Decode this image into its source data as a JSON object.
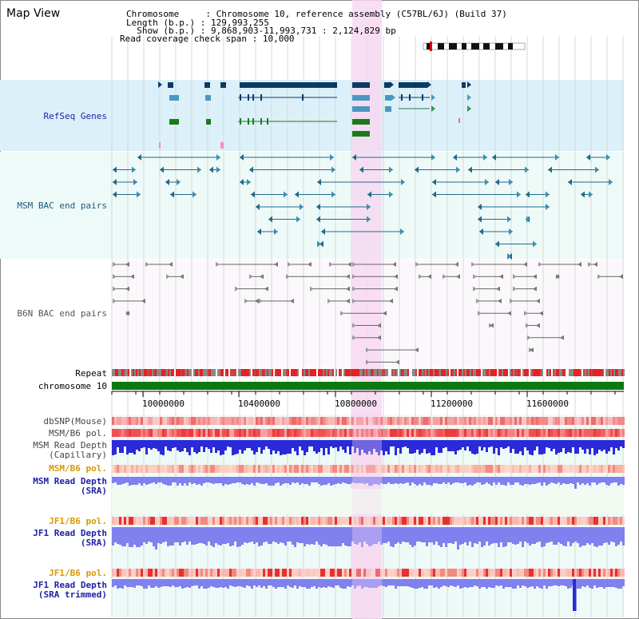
{
  "header": {
    "title": "Map View",
    "info": [
      {
        "key": "Chromosome     ",
        "value": ": Chromosome 10, reference assembly (C57BL/6J) (Build 37)"
      },
      {
        "key": "Length (b.p.) ",
        "value": ": 129,993,255"
      },
      {
        "key": "  Show (b.p.) ",
        "value": ": 9,868,903-11,993,731 : 2,124,829 bp"
      },
      {
        "key": "Read coverage check span ",
        "value": ": 10,000"
      }
    ]
  },
  "tracks": {
    "refseq": "RefSeq Genes",
    "msm_bac": "MSM BAC end pairs",
    "b6n_bac": "B6N BAC end pairs",
    "repeat": "Repeat",
    "chromosome": "chromosome 10",
    "dbsnp": "dbSNP(Mouse)",
    "msm_b6_pol_1": "MSM/B6 pol.",
    "msm_read_depth_cap_1": "MSM Read Depth",
    "msm_read_depth_cap_2": "(Capillary)",
    "msm_b6_pol_2": "MSM/B6 pol.",
    "msm_read_depth_sra_1": "MSM Read Depth",
    "msm_read_depth_sra_2": "(SRA)",
    "jf1_b6_pol_1": "JF1/B6 pol.",
    "jf1_read_depth_sra_1": "JF1 Read Depth",
    "jf1_read_depth_sra_2": "(SRA)",
    "jf1_b6_pol_2": "JF1/B6 pol.",
    "jf1_read_depth_trim_1": "JF1 Read Depth",
    "jf1_read_depth_trim_2": "(SRA trimmed)"
  },
  "axis": {
    "ticks": [
      "10000000",
      "10400000",
      "10800000",
      "11200000",
      "11600000"
    ]
  },
  "colors": {
    "refseq_bg": "#dcf0f9",
    "bac_bg": "#eefaf8",
    "b6n_bg": "#fbf8fb",
    "highlight": "#f7d8f1",
    "gene_dark": "#0c3a66",
    "gene_mid": "#4a98c0",
    "gene_green": "#1a7a1a",
    "msm_feature": "#1f6b8c",
    "b6n_feature": "#666666",
    "chrom_green": "#0a7a10",
    "pol_red": "#f26060",
    "depth_blue": "#2a2ad8",
    "depth_light": "#8080ee",
    "label_blue": "#2020a8",
    "label_orange": "#d69a00",
    "label_teal": "#1a5a80"
  }
}
